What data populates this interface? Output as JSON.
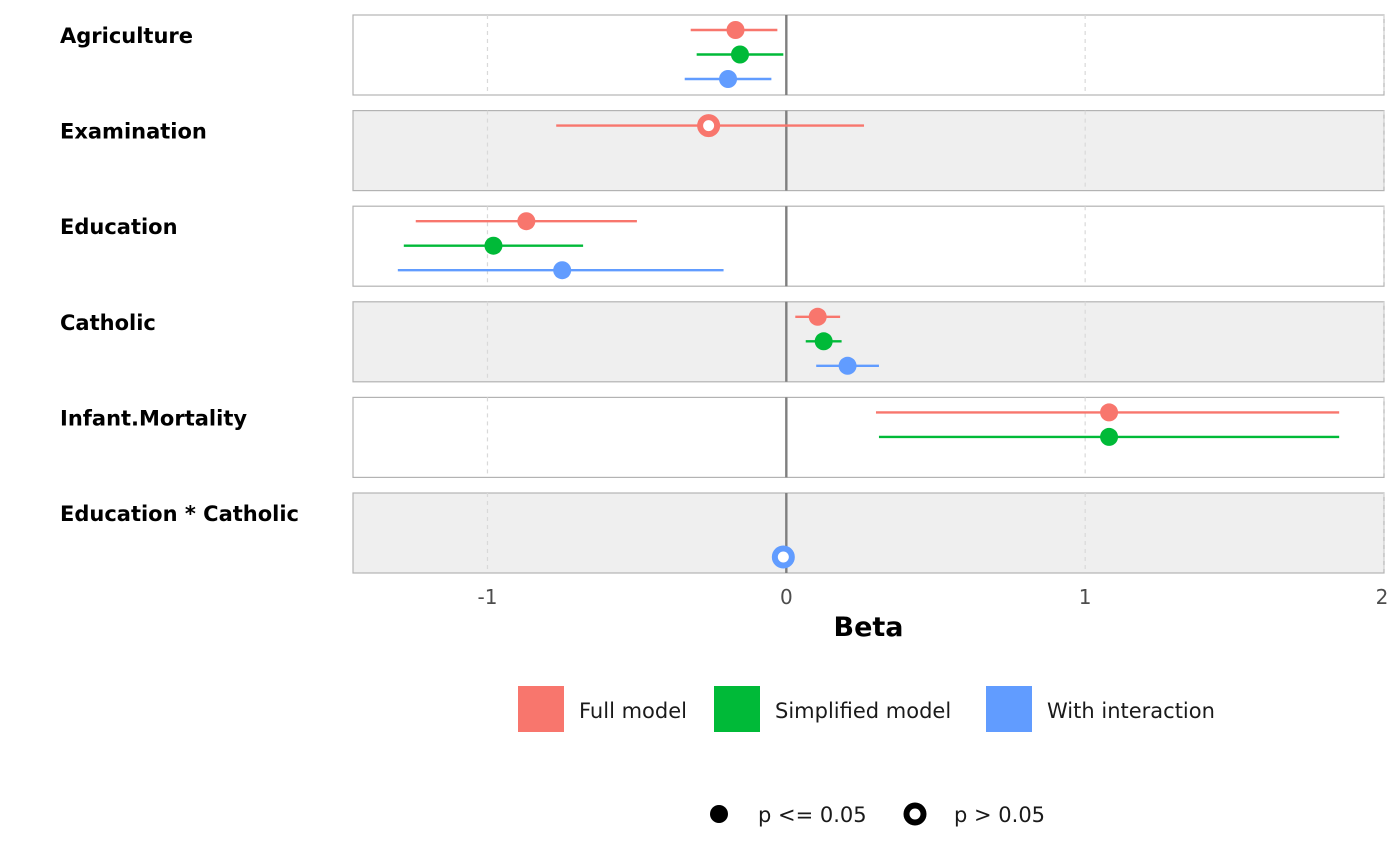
{
  "chart_data": {
    "type": "forest",
    "xlabel": "Beta",
    "xlim": [
      -1.45,
      2
    ],
    "xticks": [
      -1,
      0,
      1,
      2
    ],
    "xtick_labels": [
      "-1",
      "0",
      "1",
      "2"
    ],
    "reference_line": 0,
    "series": [
      {
        "key": "full",
        "name": "Full model",
        "color": "#F8766D"
      },
      {
        "key": "simplified",
        "name": "Simplified model",
        "color": "#00BA38"
      },
      {
        "key": "interaction",
        "name": "With interaction",
        "color": "#619CFF"
      }
    ],
    "terms": [
      {
        "label": "Agriculture",
        "estimates": [
          {
            "series": "full",
            "beta": -0.17,
            "low": -0.32,
            "high": -0.03,
            "significant": true
          },
          {
            "series": "simplified",
            "beta": -0.155,
            "low": -0.3,
            "high": -0.01,
            "significant": true
          },
          {
            "series": "interaction",
            "beta": -0.195,
            "low": -0.34,
            "high": -0.05,
            "significant": true
          }
        ]
      },
      {
        "label": "Examination",
        "estimates": [
          {
            "series": "full",
            "beta": -0.26,
            "low": -0.77,
            "high": 0.26,
            "significant": false
          }
        ]
      },
      {
        "label": "Education",
        "estimates": [
          {
            "series": "full",
            "beta": -0.87,
            "low": -1.24,
            "high": -0.5,
            "significant": true
          },
          {
            "series": "simplified",
            "beta": -0.98,
            "low": -1.28,
            "high": -0.68,
            "significant": true
          },
          {
            "series": "interaction",
            "beta": -0.75,
            "low": -1.3,
            "high": -0.21,
            "significant": true
          }
        ]
      },
      {
        "label": "Catholic",
        "estimates": [
          {
            "series": "full",
            "beta": 0.105,
            "low": 0.03,
            "high": 0.18,
            "significant": true
          },
          {
            "series": "simplified",
            "beta": 0.125,
            "low": 0.065,
            "high": 0.185,
            "significant": true
          },
          {
            "series": "interaction",
            "beta": 0.205,
            "low": 0.1,
            "high": 0.31,
            "significant": true
          }
        ]
      },
      {
        "label": "Infant.Mortality",
        "estimates": [
          {
            "series": "full",
            "beta": 1.08,
            "low": 0.3,
            "high": 1.85,
            "significant": true
          },
          {
            "series": "simplified",
            "beta": 1.08,
            "low": 0.31,
            "high": 1.85,
            "significant": true
          }
        ]
      },
      {
        "label": "Education * Catholic",
        "estimates": [
          {
            "series": "interaction",
            "beta": -0.01,
            "low": -0.02,
            "high": 0.0,
            "significant": false
          }
        ]
      }
    ],
    "significance_legend": [
      {
        "label": "p <= 0.05",
        "significant": true
      },
      {
        "label": "p > 0.05",
        "significant": false
      }
    ],
    "grid": true,
    "legend_position": "bottom"
  }
}
